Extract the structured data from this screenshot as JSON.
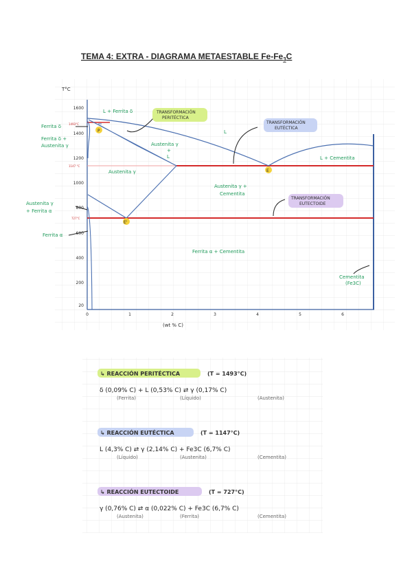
{
  "header": {
    "title": "TEMA 4: EXTRA - DIAGRAMA METAESTABLE Fe-Fe",
    "title_sub": "3",
    "title_end": "C"
  },
  "diagram": {
    "y_label": "T°C",
    "x_label": "(wt % C)",
    "yticks": [
      "1600",
      "1400",
      "1200",
      "1000",
      "800",
      "600",
      "400",
      "200",
      "20"
    ],
    "xticks": [
      "0",
      "1",
      "2",
      "3",
      "4",
      "5",
      "6"
    ],
    "temps": [
      "1493°C",
      "1147 °C",
      "727°C"
    ],
    "points": [
      "P",
      "E",
      "E'"
    ],
    "regions": [
      "L + Ferrita δ",
      "Ferrita δ",
      "Ferrita δ +",
      "Austenita γ",
      "Austenita γ",
      "+",
      "L",
      "L",
      "Austenita γ",
      "L + Cementita",
      "Austenita γ +",
      "Cementita",
      "Austenita γ",
      "+ Ferrita α",
      "Ferrita α",
      "Ferrita α + Cementita",
      "Cementita",
      "(Fe3C)"
    ],
    "annotations": [
      "TRANSFORMACIÓN",
      "PERITÉCTICA",
      "TRANSFORMACIÓN",
      "EUTÉCTICA",
      "TRANSFORMACIÓN",
      "EUTECTOIDE"
    ]
  },
  "reactions": [
    {
      "heading": "↳ REACCIÓN PERITÉCTICA",
      "condition": "(T = 1493°C)",
      "equation": "δ (0,09% C) + L (0,53% C) ⇄ γ (0,17% C)",
      "phases": [
        "(Ferrita)",
        "(Líquido)",
        "(Austenita)"
      ]
    },
    {
      "heading": "↳ REACCIÓN EUTÉCTICA",
      "condition": "(T = 1147°C)",
      "equation": "L (4,3% C) ⇄ γ (2,14% C) + Fe3C (6,7% C)",
      "phases": [
        "(Líquido)",
        "(Austenita)",
        "(Cementita)"
      ]
    },
    {
      "heading": "↳ REACCIÓN EUTECTOIDE",
      "condition": "(T = 727°C)",
      "equation": "γ (0,76% C) ⇄ α (0,022% C) + Fe3C (6,7% C)",
      "phases": [
        "(Austenita)",
        "(Ferrita)",
        "(Cementita)"
      ]
    }
  ]
}
